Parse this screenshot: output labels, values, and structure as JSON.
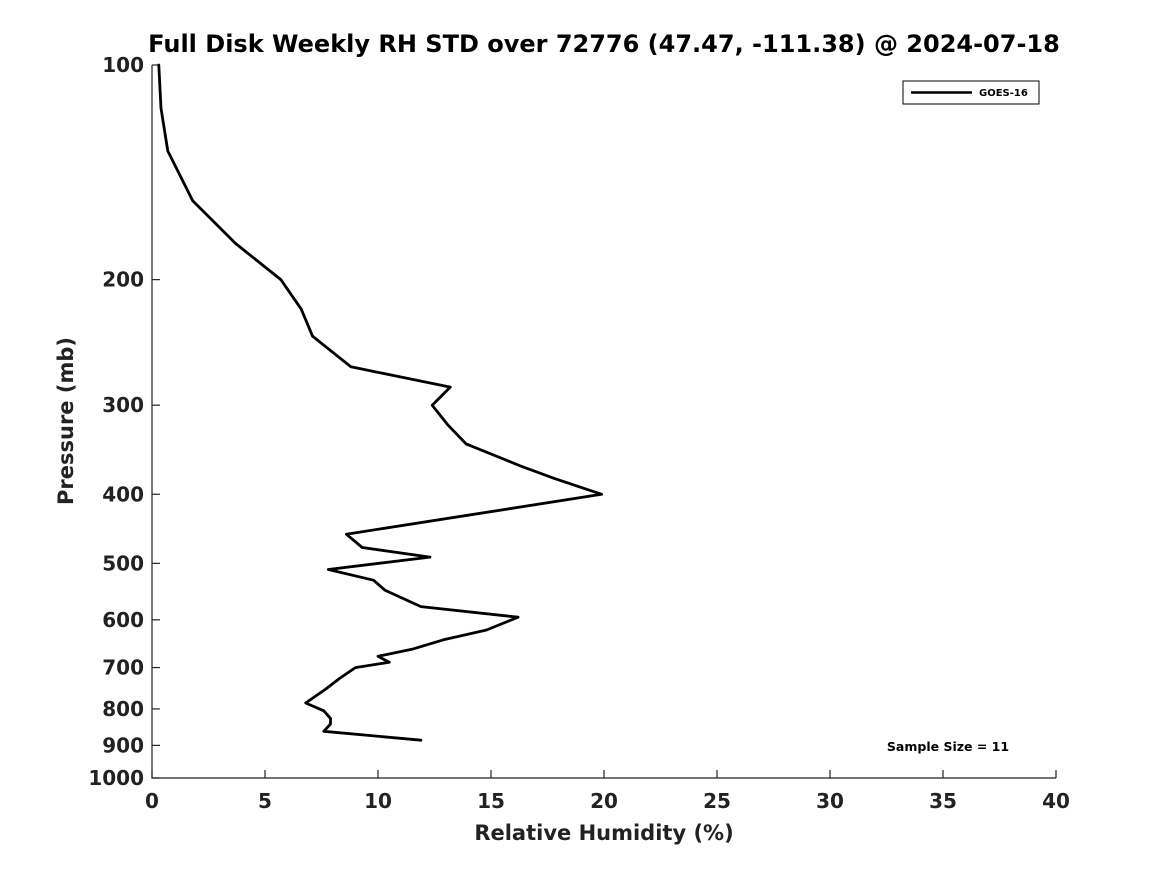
{
  "chart_data": {
    "type": "line",
    "title": "Full Disk Weekly RH STD over 72776 (47.47, -111.38) @ 2024-07-18",
    "xlabel": "Relative Humidity (%)",
    "ylabel": "Pressure (mb)",
    "xlim": [
      0,
      40
    ],
    "ylim": [
      100,
      1000
    ],
    "yscale": "log",
    "yaxis_inverted": true,
    "x_ticks": [
      "0",
      "5",
      "10",
      "15",
      "20",
      "25",
      "30",
      "35",
      "40"
    ],
    "y_ticks": [
      "100",
      "200",
      "300",
      "400",
      "500",
      "600",
      "700",
      "800",
      "900",
      "1000"
    ],
    "grid": false,
    "legend_position": "top-right",
    "annotation": "Sample Size = 11",
    "series": [
      {
        "name": "GOES-16",
        "color": "#000000",
        "x": [
          0.3,
          0.4,
          0.7,
          1.8,
          3.7,
          5.7,
          6.6,
          7.1,
          8.8,
          13.2,
          12.4,
          13.1,
          13.9,
          16.3,
          17.8,
          19.9,
          8.6,
          9.3,
          12.3,
          7.8,
          9.8,
          10.3,
          11.9,
          16.2,
          14.8,
          12.9,
          11.5,
          10.0,
          10.5,
          9.0,
          8.3,
          7.7,
          6.8,
          7.6,
          7.9,
          7.9,
          7.6,
          11.9
        ],
        "y": [
          100,
          115,
          132,
          155,
          178,
          200,
          220,
          240,
          265,
          283,
          300,
          320,
          340,
          365,
          380,
          400,
          455,
          475,
          490,
          510,
          528,
          545,
          575,
          595,
          620,
          640,
          660,
          675,
          688,
          700,
          725,
          750,
          785,
          805,
          825,
          840,
          860,
          885
        ]
      }
    ]
  }
}
